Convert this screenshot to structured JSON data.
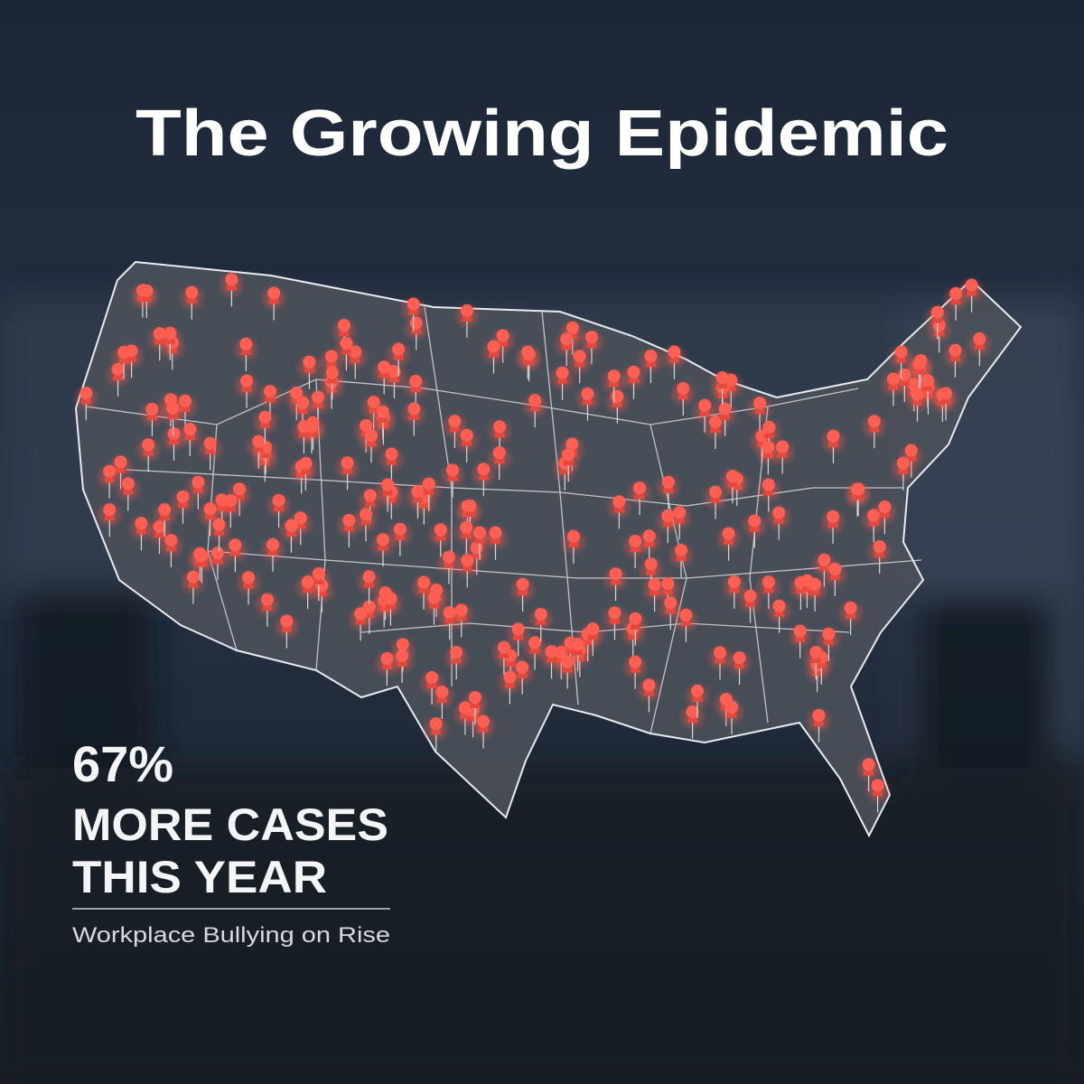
{
  "header": {
    "title": "The Growing Epidemic"
  },
  "stat": {
    "figure": "67%",
    "line1": "MORE CASES",
    "line2": "THIS YEAR",
    "caption": "Workplace Bullying on Rise"
  }
}
